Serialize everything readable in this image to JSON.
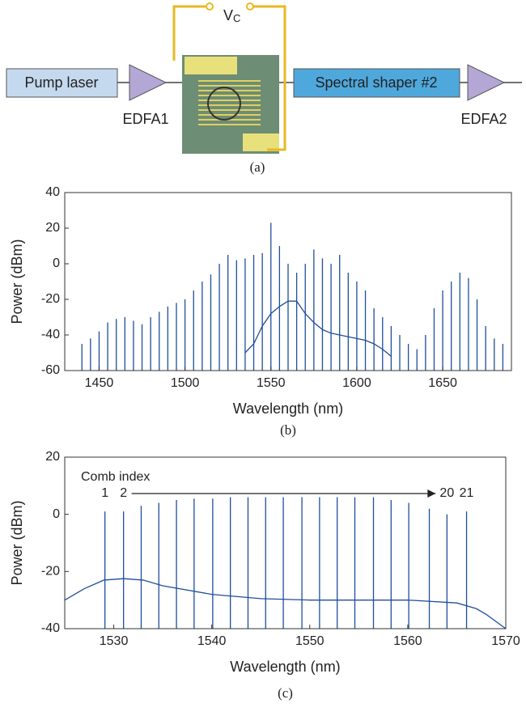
{
  "diagram": {
    "pump": "Pump laser",
    "edfa1": "EDFA1",
    "shaper": "Spectral shaper #2",
    "edfa2": "EDFA2",
    "voltage": "V",
    "voltage_sub": "C",
    "caption": "(a)"
  },
  "chart_data": [
    {
      "type": "spectrum",
      "caption": "(b)",
      "x_label": "Wavelength (nm)",
      "y_label": "Power (dBm)",
      "xlim": [
        1430,
        1690
      ],
      "xticks": [
        1450,
        1500,
        1550,
        1600,
        1650
      ],
      "ylim": [
        -60,
        40
      ],
      "yticks": [
        -60,
        -40,
        -20,
        0,
        20,
        40
      ],
      "series": [
        {
          "style": "stem",
          "color": "#1f4e9c",
          "x": [
            1440,
            1445,
            1450,
            1455,
            1460,
            1465,
            1470,
            1475,
            1480,
            1485,
            1490,
            1495,
            1500,
            1505,
            1510,
            1515,
            1520,
            1525,
            1530,
            1535,
            1540,
            1545,
            1550,
            1555,
            1560,
            1565,
            1570,
            1575,
            1580,
            1585,
            1590,
            1595,
            1600,
            1605,
            1610,
            1615,
            1620,
            1625,
            1630,
            1635,
            1640,
            1645,
            1650,
            1655,
            1660,
            1665,
            1670,
            1675,
            1680,
            1685
          ],
          "values": [
            -45,
            -42,
            -38,
            -33,
            -31,
            -30,
            -32,
            -34,
            -30,
            -27,
            -24,
            -22,
            -20,
            -15,
            -10,
            -6,
            0,
            5,
            2,
            3,
            5,
            6,
            23,
            10,
            0,
            -5,
            0,
            8,
            3,
            0,
            5,
            -5,
            -10,
            -15,
            -25,
            -30,
            -35,
            -40,
            -45,
            -48,
            -40,
            -25,
            -15,
            -10,
            -5,
            -8,
            -20,
            -35,
            -42,
            -45
          ]
        },
        {
          "style": "line",
          "color": "#1f4e9c",
          "x": [
            1535,
            1540,
            1545,
            1550,
            1555,
            1560,
            1565,
            1570,
            1575,
            1580,
            1585,
            1590,
            1595,
            1600,
            1605,
            1610,
            1615,
            1620
          ],
          "values": [
            -50,
            -45,
            -35,
            -28,
            -24,
            -21,
            -21,
            -28,
            -33,
            -37,
            -39,
            -40,
            -41,
            -42,
            -43,
            -45,
            -48,
            -52
          ]
        }
      ]
    },
    {
      "type": "spectrum",
      "caption": "(c)",
      "x_label": "Wavelength (nm)",
      "y_label": "Power (dBm)",
      "xlim": [
        1525,
        1570
      ],
      "xticks": [
        1530,
        1540,
        1550,
        1560,
        1570
      ],
      "ylim": [
        -40,
        20
      ],
      "yticks": [
        -40,
        -20,
        0,
        20
      ],
      "annotation": "Comb index",
      "comb_labels": [
        1,
        2,
        20,
        21
      ],
      "series": [
        {
          "style": "stem",
          "color": "#1f4e9c",
          "x": [
            1529.1,
            1531.0,
            1532.8,
            1534.6,
            1536.4,
            1538.2,
            1540.1,
            1541.9,
            1543.7,
            1545.5,
            1547.3,
            1549.2,
            1551.0,
            1552.8,
            1554.6,
            1556.5,
            1558.3,
            1560.1,
            1562.2,
            1564.0,
            1566.0
          ],
          "values": [
            1,
            1,
            3,
            4,
            5,
            5.5,
            5.5,
            6,
            6,
            6,
            6,
            6,
            6,
            6,
            6,
            6,
            5,
            4,
            2,
            0,
            1
          ]
        },
        {
          "style": "line",
          "color": "#1f4e9c",
          "x": [
            1525,
            1527,
            1529,
            1531,
            1533,
            1535,
            1540,
            1545,
            1550,
            1555,
            1560,
            1565,
            1567,
            1568,
            1570
          ],
          "values": [
            -30,
            -26,
            -23,
            -22.5,
            -23,
            -25,
            -28,
            -29.5,
            -30,
            -30,
            -30,
            -31,
            -33,
            -35,
            -40
          ]
        }
      ]
    }
  ]
}
